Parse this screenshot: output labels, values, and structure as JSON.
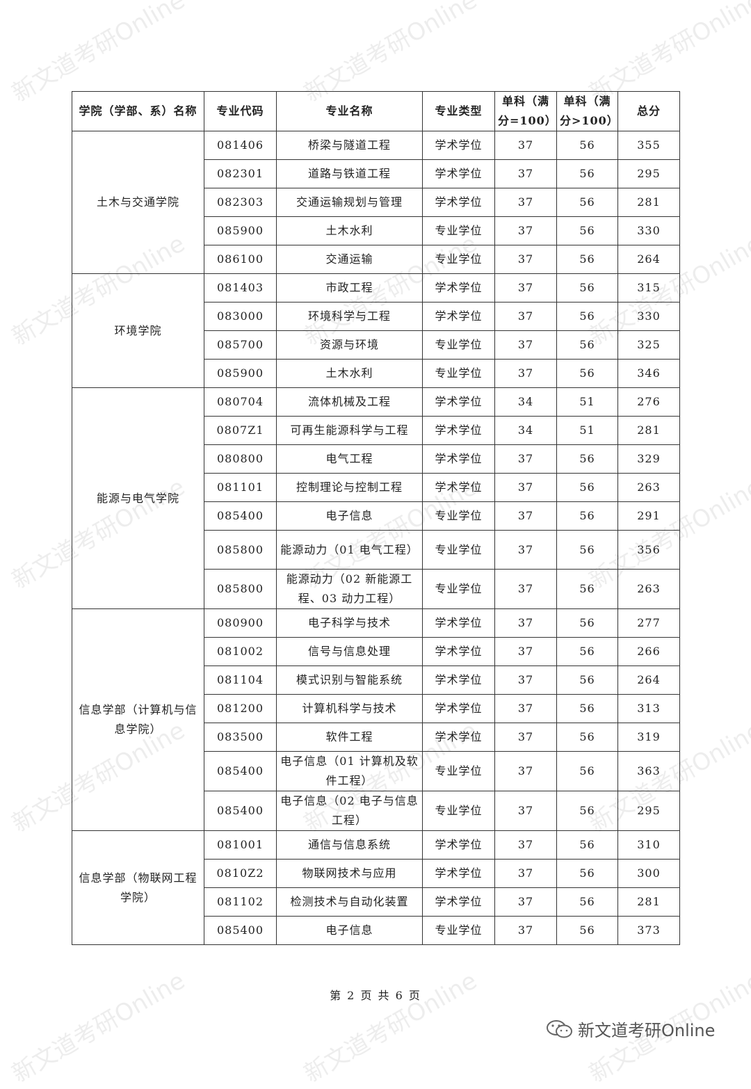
{
  "header": [
    "学院（学部、系）名称",
    "专业代码",
    "专业名称",
    "专业类型",
    "单科（满分=100）",
    "单科（满分>100）",
    "总分"
  ],
  "groups": [
    {
      "college": "土木与交通学院",
      "rows": [
        [
          "081406",
          "桥梁与隧道工程",
          "学术学位",
          "37",
          "56",
          "355"
        ],
        [
          "082301",
          "道路与铁道工程",
          "学术学位",
          "37",
          "56",
          "295"
        ],
        [
          "082303",
          "交通运输规划与管理",
          "学术学位",
          "37",
          "56",
          "281"
        ],
        [
          "085900",
          "土木水利",
          "专业学位",
          "37",
          "56",
          "330"
        ],
        [
          "086100",
          "交通运输",
          "专业学位",
          "37",
          "56",
          "264"
        ]
      ]
    },
    {
      "college": "环境学院",
      "rows": [
        [
          "081403",
          "市政工程",
          "学术学位",
          "37",
          "56",
          "315"
        ],
        [
          "083000",
          "环境科学与工程",
          "学术学位",
          "37",
          "56",
          "330"
        ],
        [
          "085700",
          "资源与环境",
          "专业学位",
          "37",
          "56",
          "325"
        ],
        [
          "085900",
          "土木水利",
          "专业学位",
          "37",
          "56",
          "346"
        ]
      ]
    },
    {
      "college": "能源与电气学院",
      "rows": [
        [
          "080704",
          "流体机械及工程",
          "学术学位",
          "34",
          "51",
          "276"
        ],
        [
          "0807Z1",
          "可再生能源科学与工程",
          "学术学位",
          "34",
          "51",
          "281"
        ],
        [
          "080800",
          "电气工程",
          "学术学位",
          "37",
          "56",
          "329"
        ],
        [
          "081101",
          "控制理论与控制工程",
          "学术学位",
          "37",
          "56",
          "263"
        ],
        [
          "085400",
          "电子信息",
          "专业学位",
          "37",
          "56",
          "291"
        ],
        [
          "085800",
          "能源动力（01 电气工程）",
          "专业学位",
          "37",
          "56",
          "356"
        ],
        [
          "085800",
          "能源动力（02 新能源工程、03 动力工程）",
          "专业学位",
          "37",
          "56",
          "263"
        ]
      ]
    },
    {
      "college": "信息学部（计算机与信息学院）",
      "rows": [
        [
          "080900",
          "电子科学与技术",
          "学术学位",
          "37",
          "56",
          "277"
        ],
        [
          "081002",
          "信号与信息处理",
          "学术学位",
          "37",
          "56",
          "266"
        ],
        [
          "081104",
          "模式识别与智能系统",
          "学术学位",
          "37",
          "56",
          "264"
        ],
        [
          "081200",
          "计算机科学与技术",
          "学术学位",
          "37",
          "56",
          "313"
        ],
        [
          "083500",
          "软件工程",
          "学术学位",
          "37",
          "56",
          "319"
        ],
        [
          "085400",
          "电子信息（01 计算机及软件工程）",
          "专业学位",
          "37",
          "56",
          "363"
        ],
        [
          "085400",
          "电子信息（02 电子与信息工程）",
          "专业学位",
          "37",
          "56",
          "295"
        ]
      ]
    },
    {
      "college": "信息学部（物联网工程学院）",
      "rows": [
        [
          "081001",
          "通信与信息系统",
          "学术学位",
          "37",
          "56",
          "310"
        ],
        [
          "0810Z2",
          "物联网技术与应用",
          "学术学位",
          "37",
          "56",
          "300"
        ],
        [
          "081102",
          "检测技术与自动化装置",
          "学术学位",
          "37",
          "56",
          "281"
        ],
        [
          "085400",
          "电子信息",
          "专业学位",
          "37",
          "56",
          "373"
        ]
      ]
    }
  ],
  "footer": "第 2 页 共 6 页",
  "watermark": "新文道考研Online",
  "logo": {
    "icon": "wechat-icon",
    "text": "新文道考研Online"
  }
}
